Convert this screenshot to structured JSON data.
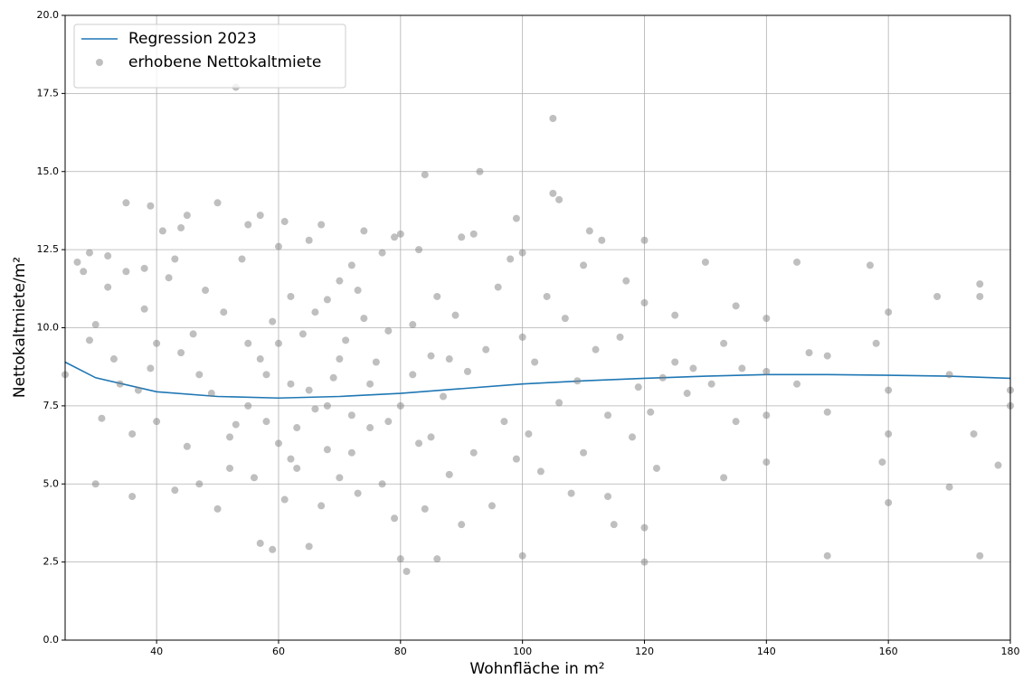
{
  "chart_data": {
    "type": "scatter",
    "xlabel": "Wohnfläche in m²",
    "ylabel": "Nettokaltmiete/m²",
    "xlim": [
      25,
      180
    ],
    "xticks": [
      40,
      60,
      80,
      100,
      120,
      140,
      160,
      180
    ],
    "ylim": [
      0,
      20
    ],
    "yticks": [
      {
        "value": 0,
        "label": "0.0"
      },
      2.5,
      {
        "value": 5,
        "label": "5.0"
      },
      7.5,
      {
        "value": 10,
        "label": "10.0"
      },
      12.5,
      {
        "value": 15,
        "label": "15.0"
      },
      17.5,
      {
        "value": 20,
        "label": "20.0"
      }
    ],
    "grid": true,
    "legend": "upper left",
    "series": [
      {
        "name": "Regression 2023",
        "type": "line",
        "color": "#1f77b4",
        "x": [
          25,
          30,
          40,
          50,
          60,
          70,
          80,
          90,
          100,
          110,
          120,
          130,
          140,
          150,
          160,
          170,
          180
        ],
        "values": [
          8.9,
          8.4,
          7.95,
          7.8,
          7.75,
          7.8,
          7.9,
          8.05,
          8.2,
          8.3,
          8.38,
          8.45,
          8.5,
          8.5,
          8.48,
          8.45,
          8.38
        ]
      },
      {
        "name": "erhobene Nettokaltmiete",
        "type": "scatter",
        "color": "#808080",
        "x": [
          25,
          27,
          28,
          29,
          29,
          30,
          30,
          31,
          32,
          32,
          33,
          34,
          35,
          35,
          36,
          36,
          37,
          38,
          38,
          39,
          39,
          40,
          40,
          41,
          42,
          43,
          43,
          44,
          45,
          45,
          46,
          47,
          48,
          49,
          50,
          50,
          51,
          52,
          53,
          53,
          54,
          55,
          55,
          56,
          57,
          57,
          58,
          59,
          59,
          60,
          60,
          61,
          61,
          62,
          62,
          63,
          64,
          65,
          65,
          66,
          67,
          67,
          68,
          68,
          69,
          70,
          70,
          71,
          72,
          72,
          73,
          74,
          74,
          75,
          76,
          77,
          77,
          78,
          79,
          79,
          80,
          80,
          80,
          81,
          82,
          83,
          83,
          84,
          84,
          85,
          86,
          86,
          87,
          88,
          89,
          90,
          90,
          91,
          92,
          92,
          93,
          94,
          95,
          96,
          97,
          98,
          99,
          99,
          100,
          100,
          100,
          101,
          102,
          103,
          104,
          105,
          105,
          106,
          106,
          107,
          108,
          109,
          110,
          110,
          111,
          112,
          113,
          114,
          114,
          115,
          116,
          117,
          118,
          119,
          120,
          120,
          120,
          120,
          121,
          122,
          123,
          125,
          125,
          127,
          128,
          130,
          131,
          133,
          133,
          135,
          135,
          136,
          140,
          140,
          140,
          140,
          145,
          145,
          147,
          150,
          150,
          150,
          157,
          158,
          159,
          160,
          160,
          160,
          160,
          168,
          170,
          170,
          174,
          175,
          175,
          175,
          178,
          180,
          180,
          52,
          55,
          58,
          60,
          63,
          65,
          68,
          70,
          72,
          75,
          78,
          82,
          85,
          88,
          62,
          66,
          73,
          57,
          47,
          44
        ],
        "values": [
          8.5,
          12.1,
          11.8,
          12.4,
          9.6,
          5.0,
          10.1,
          7.1,
          11.3,
          12.3,
          9.0,
          8.2,
          11.8,
          14.0,
          4.6,
          6.6,
          8.0,
          11.9,
          10.6,
          13.9,
          8.7,
          9.5,
          7.0,
          13.1,
          11.6,
          4.8,
          12.2,
          13.2,
          13.6,
          6.2,
          9.8,
          5.0,
          11.2,
          7.9,
          14.0,
          4.2,
          10.5,
          5.5,
          17.7,
          6.9,
          12.2,
          13.3,
          9.5,
          5.2,
          13.6,
          3.1,
          7.0,
          2.9,
          10.2,
          12.6,
          6.3,
          13.4,
          4.5,
          11.0,
          8.2,
          5.5,
          9.8,
          12.8,
          3.0,
          7.4,
          13.3,
          4.3,
          10.9,
          6.1,
          8.4,
          11.5,
          5.2,
          9.6,
          12.0,
          7.2,
          4.7,
          13.1,
          10.3,
          6.8,
          8.9,
          12.4,
          5.0,
          9.9,
          12.9,
          3.9,
          13.0,
          2.6,
          7.5,
          2.2,
          10.1,
          12.5,
          6.3,
          14.9,
          4.2,
          9.1,
          11.0,
          2.6,
          7.8,
          5.3,
          10.4,
          12.9,
          3.7,
          8.6,
          6.0,
          13.0,
          15.0,
          9.3,
          4.3,
          11.3,
          7.0,
          12.2,
          13.5,
          5.8,
          12.4,
          2.7,
          9.7,
          6.6,
          8.9,
          5.4,
          11.0,
          16.7,
          14.3,
          14.1,
          7.6,
          10.3,
          4.7,
          8.3,
          12.0,
          6.0,
          13.1,
          9.3,
          12.8,
          4.6,
          7.2,
          3.7,
          9.7,
          11.5,
          6.5,
          8.1,
          12.8,
          2.5,
          3.6,
          10.8,
          7.3,
          5.5,
          8.4,
          10.4,
          8.9,
          7.9,
          8.7,
          12.1,
          8.2,
          5.2,
          9.5,
          10.7,
          7.0,
          8.7,
          10.3,
          7.2,
          5.7,
          8.6,
          12.1,
          8.2,
          9.2,
          2.7,
          7.3,
          9.1,
          12.0,
          9.5,
          5.7,
          10.5,
          8.0,
          6.6,
          4.4,
          11.0,
          8.5,
          4.9,
          6.6,
          11.0,
          11.4,
          2.7,
          5.6,
          8.0,
          7.5,
          6.5,
          7.5,
          8.5,
          9.5,
          6.8,
          8.0,
          7.5,
          9.0,
          6.0,
          8.2,
          7.0,
          8.5,
          6.5,
          9.0,
          5.8,
          10.5,
          11.2,
          9.0,
          8.5,
          9.2
        ]
      }
    ]
  }
}
